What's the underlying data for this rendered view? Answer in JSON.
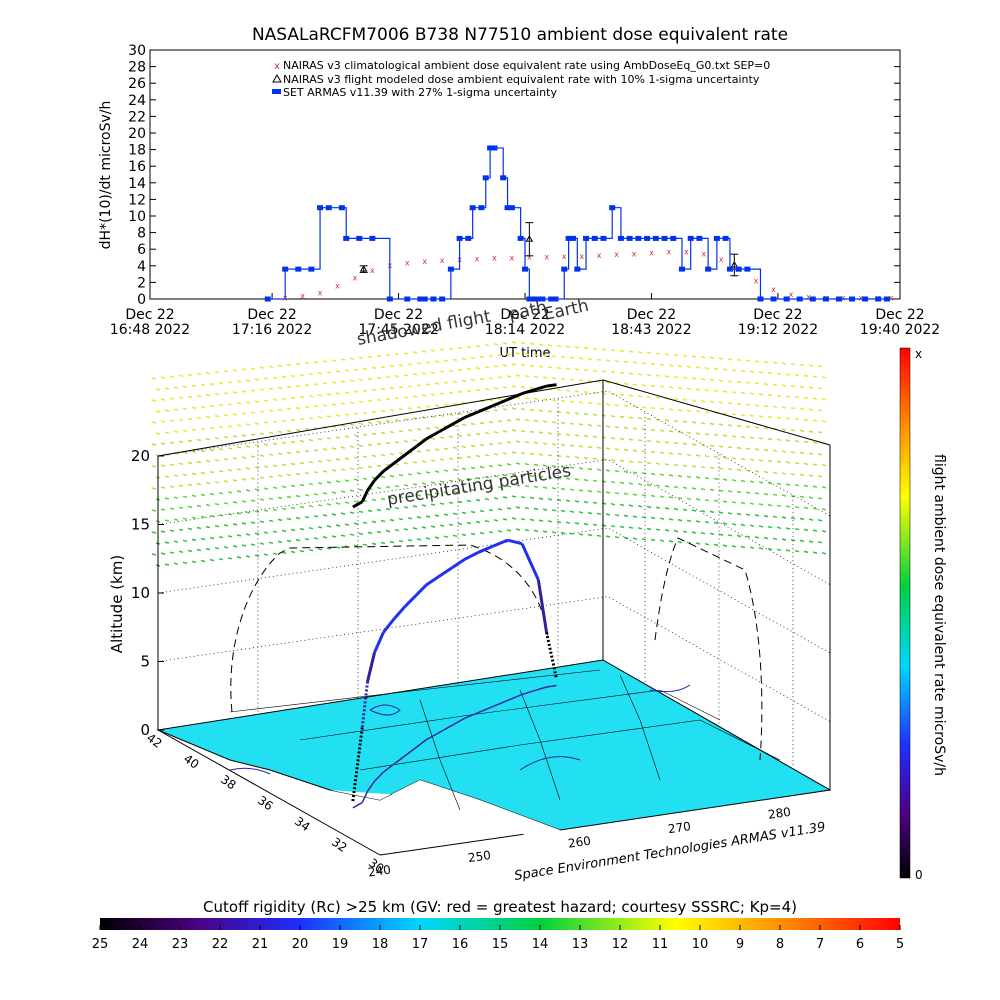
{
  "title": "NASALaRCFM7006  B738 N77510 ambient dose equivalent rate",
  "legend": {
    "placement": "top-right",
    "entries": [
      {
        "label": "NAIRAS v3 climatological ambient dose equivalent rate using AmbDoseEq_G0.txt SEP=0",
        "symbol": "x",
        "color": "#cc3333"
      },
      {
        "label": "NAIRAS v3 flight modeled dose ambient equivalent rate with 10% 1-sigma uncertainty",
        "symbol": "triangle",
        "color": "#000000"
      },
      {
        "label": "SET ARMAS v11.39 with 27% 1-sigma uncertainty",
        "symbol": "square",
        "color": "#0033ee"
      }
    ]
  },
  "chart_data": [
    {
      "type": "line",
      "title": "NASALaRCFM7006  B738 N77510 ambient dose equivalent rate",
      "ylabel": "dH*(10)/dt microSv/h",
      "xlabel": "UT time",
      "ylim": [
        0,
        30
      ],
      "xlim_minutes": [
        0,
        172
      ],
      "yticks": [
        0,
        2,
        4,
        6,
        8,
        10,
        12,
        14,
        16,
        18,
        20,
        22,
        24,
        26,
        28,
        30
      ],
      "xticks": [
        {
          "t": 0,
          "line1": "Dec 22",
          "line2": "16:48 2022"
        },
        {
          "t": 28,
          "line1": "Dec 22",
          "line2": "17:16 2022"
        },
        {
          "t": 57,
          "line1": "Dec 22",
          "line2": "17:45 2022"
        },
        {
          "t": 86,
          "line1": "Dec 22",
          "line2": "18:14 2022"
        },
        {
          "t": 115,
          "line1": "Dec 22",
          "line2": "18:43 2022"
        },
        {
          "t": 144,
          "line1": "Dec 22",
          "line2": "19:12 2022"
        },
        {
          "t": 172,
          "line1": "Dec 22",
          "line2": "19:40 2022"
        }
      ],
      "grid": false,
      "series": [
        {
          "name": "NAIRAS v3 climatological ambient dose equivalent rate using AmbDoseEq_G0.txt SEP=0",
          "color": "#cc3333",
          "marker": "x",
          "x": [
            27,
            31,
            35,
            39,
            43,
            47,
            51,
            55,
            59,
            63,
            67,
            71,
            75,
            79,
            83,
            87,
            91,
            95,
            99,
            103,
            107,
            111,
            115,
            119,
            123,
            127,
            131,
            135,
            139,
            143,
            147,
            151,
            155,
            159,
            163,
            167,
            170
          ],
          "y": [
            0.1,
            0.2,
            0.4,
            0.8,
            1.6,
            2.6,
            3.5,
            4.1,
            4.4,
            4.6,
            4.7,
            4.8,
            4.9,
            5.0,
            5.0,
            5.1,
            5.1,
            5.2,
            5.2,
            5.3,
            5.4,
            5.5,
            5.6,
            5.7,
            5.7,
            5.5,
            4.8,
            3.6,
            2.2,
            1.2,
            0.6,
            0.3,
            0.2,
            0.2,
            0.2,
            0.2,
            0.2
          ]
        },
        {
          "name": "NAIRAS v3 flight modeled dose ambient equivalent rate with 10% 1-sigma uncertainty",
          "color": "#000000",
          "marker": "triangle",
          "x": [
            49,
            87,
            134
          ],
          "y": [
            3.6,
            7.2,
            4.1
          ],
          "err": [
            0.4,
            2.0,
            1.3
          ]
        },
        {
          "name": "SET ARMAS v11.39 with 27% 1-sigma uncertainty",
          "color": "#0033ee",
          "marker": "square",
          "x": [
            27,
            31,
            34,
            37,
            39,
            41,
            44,
            45,
            48,
            51,
            55,
            59,
            62,
            63,
            65,
            67,
            69,
            71,
            73,
            74,
            76,
            77,
            78,
            79,
            81,
            82,
            83,
            85,
            86,
            87,
            88,
            89,
            90,
            92,
            93,
            95,
            96,
            97,
            98,
            100,
            102,
            104,
            106,
            108,
            110,
            112,
            114,
            116,
            118,
            120,
            122,
            124,
            126,
            128,
            130,
            132,
            133,
            135,
            137,
            140,
            143,
            146,
            149,
            152,
            155,
            158,
            161,
            164,
            167,
            169
          ],
          "y": [
            0,
            3.6,
            3.6,
            3.6,
            11,
            11,
            11,
            7.3,
            7.3,
            7.3,
            0,
            0,
            0,
            0,
            0,
            0,
            3.6,
            7.3,
            7.3,
            11,
            11,
            14.6,
            18.2,
            18.2,
            14.6,
            11,
            11,
            7.3,
            3.6,
            0,
            0,
            0,
            0,
            0,
            0,
            3.6,
            7.3,
            7.3,
            3.6,
            7.3,
            7.3,
            7.3,
            11,
            7.3,
            7.3,
            7.3,
            7.3,
            7.3,
            7.3,
            7.3,
            3.6,
            7.3,
            7.3,
            3.6,
            7.3,
            7.3,
            3.6,
            3.6,
            3.6,
            0,
            0,
            0,
            0,
            0,
            0,
            0,
            0,
            0,
            0,
            0
          ]
        }
      ]
    },
    {
      "type": "scatter",
      "title": "",
      "zlabel": "Altitude (km)",
      "zlim": [
        0,
        20
      ],
      "zticks": [
        0,
        5,
        10,
        15,
        20
      ],
      "lat_ticks": [
        30,
        32,
        34,
        36,
        38,
        40,
        42
      ],
      "lon_ticks": [
        240,
        250,
        260,
        270,
        280
      ],
      "flight_track": {
        "lon": [
          244.5,
          246,
          248,
          250,
          252,
          254,
          256,
          258,
          260,
          262,
          264,
          266,
          268,
          270,
          272,
          274,
          276,
          277,
          278
        ],
        "lat": [
          33.9,
          34.2,
          35.0,
          35.7,
          36.3,
          36.8,
          37.3,
          37.8,
          38.3,
          38.7,
          39.1,
          39.5,
          39.8,
          40.1,
          40.4,
          40.7,
          40.9,
          41.0,
          41.0
        ],
        "alt": [
          0.5,
          5.5,
          8.0,
          9.4,
          10.2,
          10.6,
          10.9,
          11.1,
          11.3,
          11.4,
          11.5,
          11.6,
          11.7,
          11.7,
          11.7,
          11.0,
          8.0,
          4.0,
          0.5
        ]
      }
    },
    {
      "type": "heatmap",
      "title": "Cutoff rigidity (Rc) >25 km (GV: red = greatest hazard; courtesy SSSRC; Kp=4)",
      "ticks": [
        25,
        24,
        23,
        22,
        21,
        20,
        19,
        18,
        17,
        16,
        15,
        14,
        13,
        12,
        11,
        10,
        9,
        8,
        7,
        6,
        5
      ]
    }
  ],
  "annotations": {
    "precipitating_particles": "precipitating particles",
    "shadowed_flight": "shadowed flight",
    "path_label": "path",
    "earth_label": "Earth",
    "credit": "Space Environment Technologies ARMAS v11.39"
  },
  "colorbar_right": {
    "label": "flight ambient dose equivalent rate microSv/h",
    "top_label": "x",
    "bottom_label": "0"
  }
}
